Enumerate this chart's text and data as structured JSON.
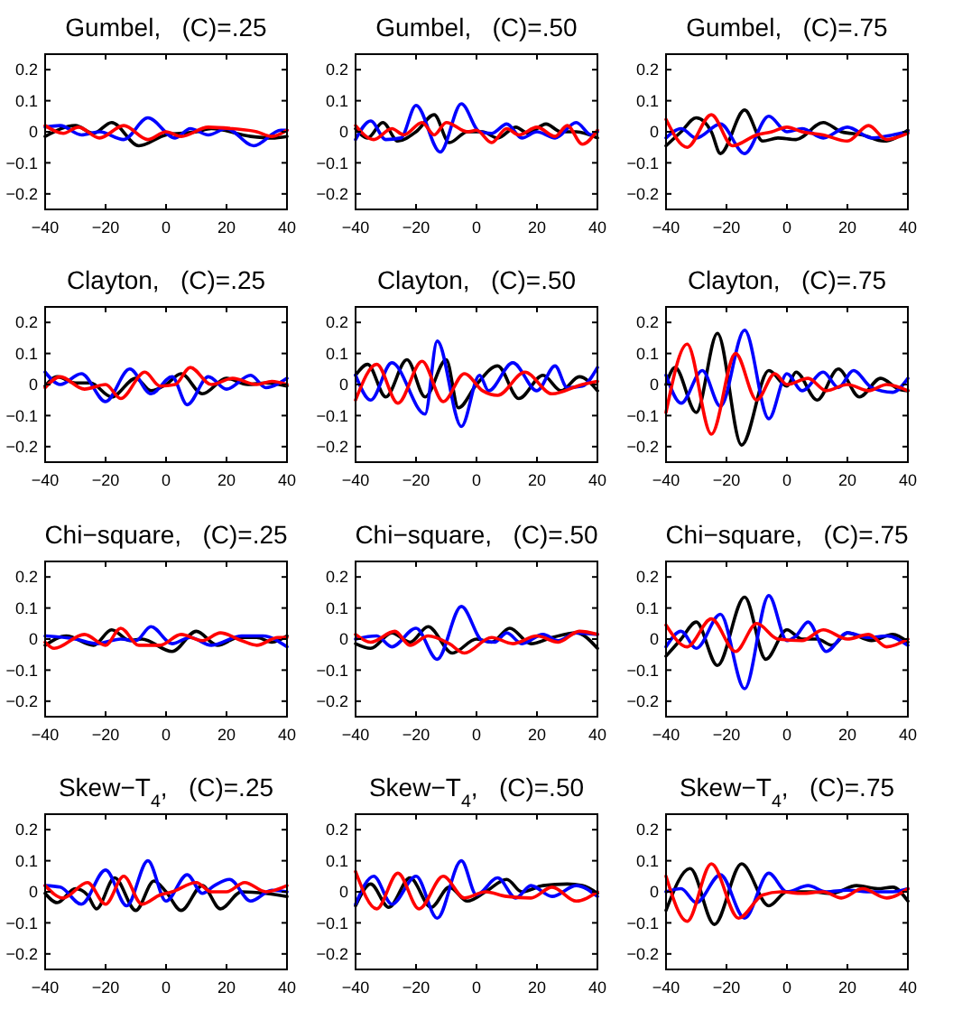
{
  "chart_data": [
    {
      "type": "line",
      "title": "Gumbel,   (C)=.25",
      "xlim": [
        -40,
        40
      ],
      "xticks": [
        -40,
        -20,
        0,
        20,
        40
      ],
      "ylim": [
        -0.25,
        0.25
      ],
      "yticks": [
        -0.2,
        -0.1,
        0,
        0.1,
        0.2
      ],
      "series": [
        {
          "color": "#000000",
          "x": [
            -40,
            -30,
            -24,
            -18,
            -9,
            0,
            10,
            15,
            28,
            35,
            40
          ],
          "values": [
            -0.015,
            0.02,
            -0.005,
            0.03,
            -0.045,
            -0.01,
            0.0,
            0.01,
            -0.015,
            -0.02,
            -0.015
          ]
        },
        {
          "color": "#0000ff",
          "x": [
            -40,
            -35,
            -28,
            -22,
            -14,
            -6,
            3,
            8,
            14,
            20,
            29,
            38,
            40
          ],
          "values": [
            0.015,
            0.02,
            -0.01,
            0.0,
            -0.025,
            0.045,
            -0.02,
            0.01,
            -0.01,
            0.01,
            -0.045,
            0.005,
            0.005
          ]
        },
        {
          "color": "#ff0000",
          "x": [
            -40,
            -34,
            -29,
            -22,
            -14,
            -6,
            0,
            5,
            14,
            22,
            30,
            35,
            40
          ],
          "values": [
            0.02,
            -0.005,
            0.015,
            -0.02,
            0.02,
            -0.025,
            0.0,
            -0.015,
            0.015,
            0.01,
            0.0,
            -0.015,
            0.005
          ]
        }
      ]
    },
    {
      "type": "line",
      "title": "Gumbel,   (C)=.50",
      "xlim": [
        -40,
        40
      ],
      "xticks": [
        -40,
        -20,
        0,
        20,
        40
      ],
      "ylim": [
        -0.25,
        0.25
      ],
      "yticks": [
        -0.2,
        -0.1,
        0,
        0.1,
        0.2
      ],
      "series": [
        {
          "color": "#000000",
          "x": [
            -40,
            -36,
            -31,
            -26,
            -20,
            -14,
            -9,
            -3,
            2,
            7,
            13,
            17,
            23,
            28,
            33,
            40
          ],
          "values": [
            0.01,
            -0.02,
            0.03,
            -0.03,
            0.0,
            0.055,
            -0.035,
            0.0,
            0.0,
            -0.02,
            0.015,
            -0.005,
            0.025,
            0.0,
            0.0,
            -0.02
          ]
        },
        {
          "color": "#0000ff",
          "x": [
            -40,
            -35,
            -30,
            -25,
            -20,
            -12,
            -5,
            1,
            5,
            10,
            15,
            20,
            26,
            33,
            38,
            40
          ],
          "values": [
            -0.025,
            0.035,
            -0.025,
            -0.02,
            0.085,
            -0.065,
            0.09,
            0.0,
            -0.005,
            0.025,
            -0.02,
            0.0,
            -0.02,
            0.03,
            -0.01,
            0.0
          ]
        },
        {
          "color": "#ff0000",
          "x": [
            -40,
            -34,
            -28,
            -24,
            -18,
            -14,
            -10,
            -3,
            0,
            5,
            10,
            14,
            20,
            26,
            30,
            35,
            40
          ],
          "values": [
            0.02,
            -0.025,
            0.01,
            -0.01,
            0.03,
            -0.01,
            0.03,
            0.0,
            0.005,
            -0.035,
            0.01,
            -0.01,
            0.015,
            -0.015,
            0.02,
            -0.04,
            0.005
          ]
        }
      ]
    },
    {
      "type": "line",
      "title": "Gumbel,   (C)=.75",
      "xlim": [
        -40,
        40
      ],
      "xticks": [
        -40,
        -20,
        0,
        20,
        40
      ],
      "ylim": [
        -0.25,
        0.25
      ],
      "yticks": [
        -0.2,
        -0.1,
        0,
        0.1,
        0.2
      ],
      "series": [
        {
          "color": "#000000",
          "x": [
            -40,
            -35,
            -30,
            -25,
            -22,
            -14,
            -8,
            -3,
            3,
            12,
            18,
            25,
            32,
            40
          ],
          "values": [
            -0.045,
            0.0,
            0.045,
            0.0,
            -0.07,
            0.07,
            -0.03,
            -0.02,
            -0.025,
            0.03,
            0.0,
            -0.01,
            -0.03,
            0.005
          ]
        },
        {
          "color": "#0000ff",
          "x": [
            -40,
            -35,
            -30,
            -22,
            -14,
            -6,
            0,
            5,
            12,
            20,
            28,
            35,
            40
          ],
          "values": [
            -0.02,
            0.01,
            -0.02,
            0.025,
            -0.07,
            0.05,
            0.0,
            0.01,
            -0.02,
            0.015,
            -0.02,
            -0.01,
            0.0
          ]
        },
        {
          "color": "#ff0000",
          "x": [
            -40,
            -33,
            -25,
            -18,
            -10,
            -5,
            0,
            5,
            12,
            20,
            27,
            33,
            40
          ],
          "values": [
            0.04,
            -0.05,
            0.055,
            -0.045,
            -0.01,
            0.0,
            0.015,
            0.0,
            -0.01,
            -0.03,
            0.02,
            -0.025,
            -0.005
          ]
        }
      ]
    },
    {
      "type": "line",
      "title": "Clayton,   (C)=.25",
      "xlim": [
        -40,
        40
      ],
      "xticks": [
        -40,
        -20,
        0,
        20,
        40
      ],
      "ylim": [
        -0.25,
        0.25
      ],
      "yticks": [
        -0.2,
        -0.1,
        0,
        0.1,
        0.2
      ],
      "series": [
        {
          "color": "#000000",
          "x": [
            -40,
            -36,
            -30,
            -25,
            -18,
            -10,
            -5,
            0,
            5,
            12,
            20,
            27,
            33,
            40
          ],
          "values": [
            -0.005,
            0.025,
            0.005,
            0.005,
            -0.04,
            0.02,
            -0.02,
            0.0,
            0.035,
            -0.03,
            0.02,
            0.0,
            0.005,
            -0.005
          ]
        },
        {
          "color": "#0000ff",
          "x": [
            -40,
            -35,
            -28,
            -20,
            -12,
            -5,
            2,
            7,
            14,
            20,
            28,
            33,
            40
          ],
          "values": [
            0.04,
            0.0,
            0.035,
            -0.055,
            0.05,
            -0.03,
            0.025,
            -0.065,
            0.025,
            -0.015,
            0.03,
            -0.01,
            0.02
          ]
        },
        {
          "color": "#ff0000",
          "x": [
            -40,
            -35,
            -27,
            -20,
            -15,
            -7,
            -2,
            3,
            8,
            15,
            22,
            30,
            35,
            40
          ],
          "values": [
            -0.01,
            0.025,
            -0.015,
            0.0,
            -0.045,
            0.04,
            -0.005,
            0.0,
            0.055,
            0.0,
            0.02,
            0.0,
            0.01,
            0.0
          ]
        }
      ]
    },
    {
      "type": "line",
      "title": "Clayton,   (C)=.50",
      "xlim": [
        -40,
        40
      ],
      "xticks": [
        -40,
        -20,
        0,
        20,
        40
      ],
      "ylim": [
        -0.25,
        0.25
      ],
      "yticks": [
        -0.2,
        -0.1,
        0,
        0.1,
        0.2
      ],
      "series": [
        {
          "color": "#000000",
          "x": [
            -40,
            -36,
            -30,
            -23,
            -17,
            -10,
            -6,
            0,
            7,
            14,
            22,
            28,
            34,
            40
          ],
          "values": [
            0.03,
            0.065,
            -0.04,
            0.08,
            -0.04,
            0.08,
            -0.075,
            0.0,
            0.06,
            -0.045,
            0.03,
            -0.02,
            0.025,
            -0.02
          ]
        },
        {
          "color": "#0000ff",
          "x": [
            -40,
            -35,
            -28,
            -17,
            -13,
            -5,
            1,
            4,
            12,
            20,
            26,
            30,
            35,
            40
          ],
          "values": [
            0.03,
            -0.05,
            0.07,
            -0.095,
            0.14,
            -0.135,
            0.03,
            -0.02,
            0.07,
            -0.02,
            0.06,
            -0.01,
            -0.005,
            0.055
          ]
        },
        {
          "color": "#ff0000",
          "x": [
            -40,
            -33,
            -26,
            -18,
            -11,
            -4,
            2,
            7,
            16,
            25,
            35,
            40
          ],
          "values": [
            -0.05,
            0.065,
            -0.06,
            0.075,
            -0.055,
            0.035,
            -0.02,
            -0.035,
            0.04,
            -0.03,
            0.0,
            0.01
          ]
        }
      ]
    },
    {
      "type": "line",
      "title": "Clayton,   (C)=.75",
      "xlim": [
        -40,
        40
      ],
      "xticks": [
        -40,
        -20,
        0,
        20,
        40
      ],
      "ylim": [
        -0.25,
        0.25
      ],
      "yticks": [
        -0.2,
        -0.1,
        0,
        0.1,
        0.2
      ],
      "series": [
        {
          "color": "#000000",
          "x": [
            -40,
            -37,
            -30,
            -23,
            -15,
            -6,
            0,
            3,
            10,
            17,
            24,
            31,
            37,
            40
          ],
          "values": [
            0.0,
            0.055,
            -0.09,
            0.165,
            -0.195,
            0.045,
            -0.005,
            0.04,
            -0.05,
            0.05,
            -0.04,
            0.02,
            -0.015,
            -0.02
          ]
        },
        {
          "color": "#0000ff",
          "x": [
            -40,
            -35,
            -28,
            -22,
            -14,
            -6,
            0,
            5,
            12,
            17,
            22,
            28,
            35,
            40
          ],
          "values": [
            0.03,
            -0.06,
            0.045,
            -0.07,
            0.175,
            -0.11,
            0.035,
            -0.02,
            0.04,
            -0.01,
            0.045,
            -0.01,
            -0.025,
            0.02
          ]
        },
        {
          "color": "#ff0000",
          "x": [
            -40,
            -33,
            -25,
            -17,
            -10,
            -4,
            0,
            7,
            13,
            20,
            27,
            33,
            40
          ],
          "values": [
            -0.09,
            0.13,
            -0.16,
            0.1,
            -0.05,
            0.035,
            0.0,
            0.02,
            -0.02,
            0.0,
            -0.02,
            0.0,
            -0.02
          ]
        }
      ]
    },
    {
      "type": "line",
      "title": "Chi−square,   (C)=.25",
      "xlim": [
        -40,
        40
      ],
      "xticks": [
        -40,
        -20,
        0,
        20,
        40
      ],
      "ylim": [
        -0.25,
        0.25
      ],
      "yticks": [
        -0.2,
        -0.1,
        0,
        0.1,
        0.2
      ],
      "series": [
        {
          "color": "#000000",
          "x": [
            -40,
            -33,
            -24,
            -18,
            -12,
            -8,
            2,
            10,
            17,
            24,
            30,
            35,
            40
          ],
          "values": [
            -0.02,
            0.01,
            -0.02,
            0.03,
            -0.005,
            0.0,
            -0.04,
            0.025,
            -0.02,
            0.005,
            0.005,
            -0.01,
            0.01
          ]
        },
        {
          "color": "#0000ff",
          "x": [
            -40,
            -30,
            -23,
            -15,
            -10,
            -5,
            2,
            8,
            15,
            25,
            32,
            40
          ],
          "values": [
            0.01,
            0.0,
            -0.015,
            0.0,
            -0.005,
            0.04,
            -0.015,
            0.005,
            -0.02,
            0.01,
            0.01,
            -0.025
          ]
        },
        {
          "color": "#ff0000",
          "x": [
            -40,
            -37,
            -27,
            -20,
            -15,
            -9,
            -2,
            5,
            12,
            18,
            25,
            30,
            37,
            40
          ],
          "values": [
            -0.01,
            -0.03,
            0.015,
            -0.02,
            0.035,
            -0.02,
            -0.02,
            0.015,
            -0.005,
            0.02,
            -0.005,
            -0.02,
            0.005,
            0.005
          ]
        }
      ]
    },
    {
      "type": "line",
      "title": "Chi−square,   (C)=.50",
      "xlim": [
        -40,
        40
      ],
      "xticks": [
        -40,
        -20,
        0,
        20,
        40
      ],
      "ylim": [
        -0.25,
        0.25
      ],
      "yticks": [
        -0.2,
        -0.1,
        0,
        0.1,
        0.2
      ],
      "series": [
        {
          "color": "#000000",
          "x": [
            -40,
            -35,
            -28,
            -22,
            -16,
            -8,
            0,
            5,
            11,
            18,
            25,
            33,
            40
          ],
          "values": [
            -0.015,
            -0.03,
            0.02,
            -0.01,
            0.04,
            -0.045,
            0.0,
            -0.01,
            0.035,
            -0.015,
            0.005,
            0.02,
            -0.03
          ]
        },
        {
          "color": "#0000ff",
          "x": [
            -40,
            -33,
            -28,
            -20,
            -13,
            -5,
            2,
            6,
            10,
            15,
            22,
            27,
            33,
            40
          ],
          "values": [
            0.0,
            0.01,
            -0.025,
            0.035,
            -0.065,
            0.105,
            -0.005,
            -0.01,
            0.02,
            -0.015,
            0.015,
            -0.005,
            0.02,
            0.015
          ]
        },
        {
          "color": "#ff0000",
          "x": [
            -40,
            -35,
            -27,
            -22,
            -16,
            -9,
            -4,
            5,
            12,
            20,
            27,
            34,
            40
          ],
          "values": [
            0.015,
            -0.01,
            0.025,
            -0.02,
            0.01,
            -0.015,
            -0.045,
            0.005,
            -0.015,
            0.01,
            -0.01,
            0.025,
            0.015
          ]
        }
      ]
    },
    {
      "type": "line",
      "title": "Chi−square,   (C)=.75",
      "xlim": [
        -40,
        40
      ],
      "xticks": [
        -40,
        -20,
        0,
        20,
        40
      ],
      "ylim": [
        -0.25,
        0.25
      ],
      "yticks": [
        -0.2,
        -0.1,
        0,
        0.1,
        0.2
      ],
      "series": [
        {
          "color": "#000000",
          "x": [
            -40,
            -35,
            -30,
            -23,
            -14,
            -7,
            0,
            5,
            10,
            15,
            20,
            28,
            35,
            40
          ],
          "values": [
            -0.055,
            0.0,
            0.055,
            -0.085,
            0.135,
            -0.065,
            0.03,
            0.0,
            0.0,
            -0.02,
            0.02,
            -0.005,
            0.015,
            -0.01
          ]
        },
        {
          "color": "#0000ff",
          "x": [
            -40,
            -35,
            -30,
            -22,
            -14,
            -6,
            0,
            3,
            7,
            13,
            20,
            27,
            33,
            40
          ],
          "values": [
            -0.025,
            0.025,
            -0.03,
            0.08,
            -0.16,
            0.14,
            -0.005,
            0.01,
            0.055,
            -0.04,
            0.02,
            0.005,
            0.01,
            -0.02
          ]
        },
        {
          "color": "#ff0000",
          "x": [
            -40,
            -33,
            -25,
            -17,
            -10,
            -3,
            5,
            12,
            20,
            27,
            33,
            40
          ],
          "values": [
            0.045,
            -0.025,
            0.065,
            -0.04,
            0.05,
            0.0,
            -0.005,
            0.03,
            0.0,
            0.015,
            -0.025,
            0.0
          ]
        }
      ]
    },
    {
      "type": "line",
      "title": "Skew−T$_{4}$,   (C)=.25",
      "xlim": [
        -40,
        40
      ],
      "xticks": [
        -40,
        -20,
        0,
        20,
        40
      ],
      "ylim": [
        -0.25,
        0.25
      ],
      "yticks": [
        -0.2,
        -0.1,
        0,
        0.1,
        0.2
      ],
      "series": [
        {
          "color": "#000000",
          "x": [
            -40,
            -36,
            -30,
            -26,
            -23,
            -17,
            -10,
            -4,
            0,
            5,
            12,
            18,
            25,
            33,
            40
          ],
          "values": [
            -0.005,
            -0.035,
            0.01,
            -0.01,
            -0.055,
            0.045,
            -0.06,
            0.035,
            0.0,
            -0.06,
            0.02,
            -0.055,
            0.0,
            -0.005,
            -0.015
          ]
        },
        {
          "color": "#0000ff",
          "x": [
            -40,
            -35,
            -28,
            -20,
            -13,
            -6,
            0,
            7,
            12,
            16,
            21,
            28,
            35,
            40
          ],
          "values": [
            0.02,
            0.015,
            -0.04,
            0.07,
            -0.045,
            0.1,
            -0.03,
            0.055,
            -0.005,
            0.02,
            0.04,
            -0.03,
            0.005,
            0.0
          ]
        },
        {
          "color": "#ff0000",
          "x": [
            -40,
            -34,
            -26,
            -20,
            -14,
            -8,
            -2,
            2,
            10,
            15,
            20,
            26,
            33,
            40
          ],
          "values": [
            0.02,
            -0.02,
            0.03,
            -0.04,
            0.05,
            -0.04,
            -0.01,
            0.0,
            0.03,
            0.0,
            0.0,
            0.03,
            0.0,
            0.02
          ]
        }
      ]
    },
    {
      "type": "line",
      "title": "Skew−T$_{4}$,   (C)=.50",
      "xlim": [
        -40,
        40
      ],
      "xticks": [
        -40,
        -20,
        0,
        20,
        40
      ],
      "ylim": [
        -0.25,
        0.25
      ],
      "yticks": [
        -0.2,
        -0.1,
        0,
        0.1,
        0.2
      ],
      "series": [
        {
          "color": "#000000",
          "x": [
            -40,
            -35,
            -29,
            -22,
            -15,
            -9,
            -3,
            3,
            10,
            15,
            22,
            30,
            35,
            40
          ],
          "values": [
            -0.045,
            0.025,
            -0.05,
            0.045,
            -0.05,
            0.015,
            -0.03,
            0.0,
            0.04,
            0.0,
            0.02,
            0.025,
            0.02,
            -0.005
          ]
        },
        {
          "color": "#0000ff",
          "x": [
            -40,
            -34,
            -28,
            -20,
            -13,
            -5,
            0,
            7,
            13,
            18,
            25,
            33,
            40
          ],
          "values": [
            -0.04,
            0.05,
            -0.04,
            0.05,
            -0.085,
            0.1,
            -0.01,
            0.045,
            -0.02,
            0.02,
            -0.015,
            0.02,
            -0.015
          ]
        },
        {
          "color": "#ff0000",
          "x": [
            -40,
            -33,
            -26,
            -19,
            -11,
            -4,
            3,
            10,
            18,
            25,
            33,
            40
          ],
          "values": [
            0.065,
            -0.055,
            0.06,
            -0.055,
            0.05,
            -0.02,
            0.0,
            -0.015,
            -0.02,
            0.015,
            -0.03,
            0.0
          ]
        }
      ]
    },
    {
      "type": "line",
      "title": "Skew−T$_{4}$,   (C)=.75",
      "xlim": [
        -40,
        40
      ],
      "xticks": [
        -40,
        -20,
        0,
        20,
        40
      ],
      "ylim": [
        -0.25,
        0.25
      ],
      "yticks": [
        -0.2,
        -0.1,
        0,
        0.1,
        0.2
      ],
      "series": [
        {
          "color": "#000000",
          "x": [
            -40,
            -32,
            -24,
            -15,
            -6,
            0,
            8,
            15,
            23,
            30,
            35,
            40
          ],
          "values": [
            -0.06,
            0.075,
            -0.105,
            0.09,
            -0.045,
            0.0,
            0.0,
            -0.005,
            0.02,
            0.01,
            0.015,
            -0.03
          ]
        },
        {
          "color": "#0000ff",
          "x": [
            -40,
            -35,
            -30,
            -22,
            -14,
            -6,
            0,
            7,
            13,
            20,
            28,
            35,
            40
          ],
          "values": [
            0.0,
            0.01,
            -0.035,
            0.055,
            -0.085,
            0.06,
            0.0,
            0.02,
            0.0,
            0.005,
            0.0,
            0.0,
            0.01
          ]
        },
        {
          "color": "#ff0000",
          "x": [
            -40,
            -33,
            -25,
            -16,
            -8,
            -2,
            5,
            12,
            18,
            25,
            33,
            40
          ],
          "values": [
            0.05,
            -0.095,
            0.09,
            -0.085,
            -0.01,
            0.0,
            -0.005,
            0.0,
            -0.02,
            0.01,
            -0.02,
            0.01
          ]
        }
      ]
    }
  ]
}
